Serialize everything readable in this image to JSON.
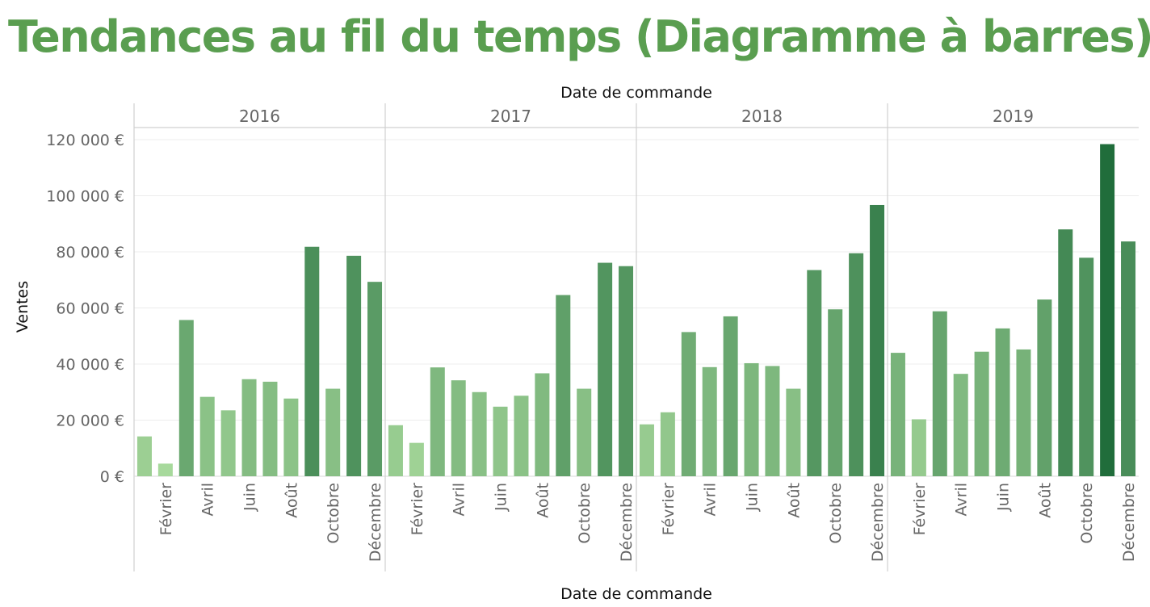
{
  "page": {
    "title": "Tendances au fil du temps (Diagramme à barres)",
    "title_color": "#5a9e50"
  },
  "chart_data": {
    "type": "bar",
    "title": "Tendances au fil du temps (Diagramme à barres)",
    "header_label": "Date de commande",
    "xlabel": "Date de commande",
    "ylabel": "Ventes",
    "ylim": [
      0,
      125000
    ],
    "yticks": [
      0,
      20000,
      40000,
      60000,
      80000,
      100000,
      120000
    ],
    "ytick_labels": [
      "0 €",
      "20 000 €",
      "40 000 €",
      "60 000 €",
      "80 000 €",
      "100 000 €",
      "120 000 €"
    ],
    "grid": true,
    "color_scale": [
      "#a8d99c",
      "#1e6b3a"
    ],
    "visible_month_labels": [
      "",
      "Février",
      "",
      "Avril",
      "",
      "Juin",
      "",
      "Août",
      "",
      "Octobre",
      "",
      "Décembre"
    ],
    "panels": [
      {
        "year": "2016",
        "values": [
          14200,
          4500,
          55700,
          28300,
          23500,
          34600,
          33700,
          27700,
          81800,
          31200,
          78600,
          69300
        ]
      },
      {
        "year": "2017",
        "values": [
          18200,
          11900,
          38800,
          34200,
          30000,
          24800,
          28700,
          36700,
          64600,
          31200,
          76100,
          74900
        ]
      },
      {
        "year": "2018",
        "values": [
          18500,
          22800,
          51400,
          38900,
          57000,
          40300,
          39300,
          31200,
          73500,
          59500,
          79500,
          96700
        ]
      },
      {
        "year": "2019",
        "values": [
          44000,
          20300,
          58800,
          36500,
          44400,
          52700,
          45200,
          63000,
          88000,
          77900,
          118400,
          83700
        ]
      }
    ]
  }
}
